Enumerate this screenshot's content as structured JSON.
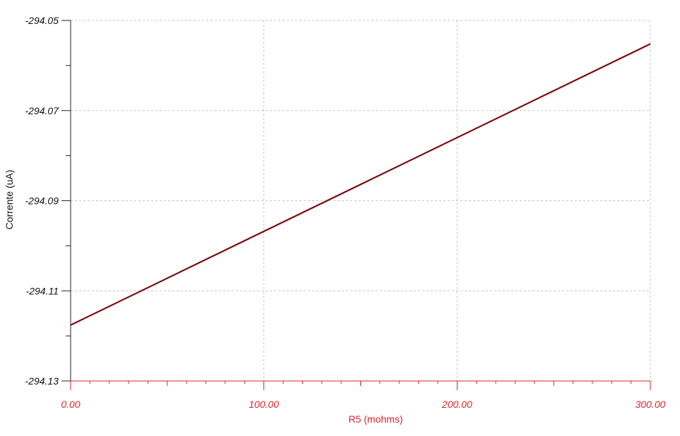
{
  "chart_data": {
    "type": "line",
    "title": "",
    "xlabel": "R5 (mohms)",
    "ylabel": "Corrente (uA)",
    "xlim": [
      0,
      300
    ],
    "ylim": [
      -294.13,
      -294.05
    ],
    "x_ticks": [
      0,
      100,
      200,
      300
    ],
    "x_tick_labels": [
      "0.00",
      "100.00",
      "200.00",
      "300.00"
    ],
    "y_ticks": [
      -294.05,
      -294.07,
      -294.09,
      -294.11,
      -294.13
    ],
    "y_tick_labels": [
      "-294.05",
      "-294.07",
      "-294.09",
      "-294.11",
      "-294.13"
    ],
    "x_minor_step": 10,
    "y_minor_step": 0.01,
    "grid": true,
    "series": [
      {
        "color": "#7a0c12",
        "x": [
          0,
          300
        ],
        "y": [
          -294.1176,
          -294.0552
        ]
      }
    ],
    "colors": {
      "x_axis": "#d8262b",
      "y_axis": "#222222",
      "grid": "#c4c4c4"
    }
  }
}
